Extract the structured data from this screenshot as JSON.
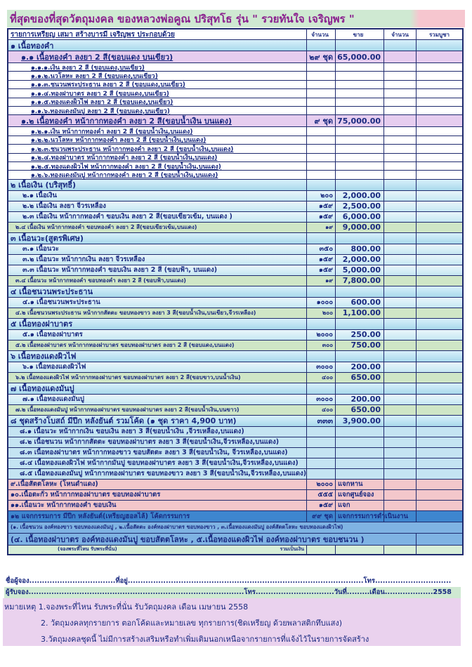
{
  "title": "ที่สุดของที่สุดวัตถุมงคล ของหลวงพ่อคูณ ปริสุทโธ รุ่น \" รวยทันใจ เจริญพร \"",
  "header": {
    "description": "รายการเหรียญ เสมา สร้างบารมี เจริญพร ประกอบด้วย",
    "qty": "จำนวน",
    "price": "ขาย",
    "count": "จำนวน",
    "total": "รวมบูชา"
  },
  "rows": [
    {
      "style": "sec",
      "label": "๑ เนื้อทองคำ",
      "qty": "",
      "price": ""
    },
    {
      "style": "main",
      "label": "๑.๑ เนื้อทองคำ ลงยา 2 สี(ขอบแดง บนเขียว)",
      "qty": "๒๙ ชุด",
      "price": "65,000.00"
    },
    {
      "style": "sub",
      "label": "๑.๑.๑.เงิน ลงยา 2 สี (ขอบแดง,บนเขียว)",
      "qty": "",
      "price": ""
    },
    {
      "style": "sub",
      "label": "๑.๑.๒.นวโลหะ ลงยา 2 สี (ขอบแดง,บนเขียว)",
      "qty": "",
      "price": ""
    },
    {
      "style": "sub",
      "label": "๑.๑.๓.ชนวนพระประธาน ลงยา 2 สี (ขอบแดง,บนเขียว)",
      "qty": "",
      "price": ""
    },
    {
      "style": "sub",
      "label": "๑.๑.๔.ทองฝาบาตร ลงยา 2 สี (ขอบแดง,บนเขียว)",
      "qty": "",
      "price": ""
    },
    {
      "style": "sub",
      "label": "๑.๑.๕.ทองแดงผิวไฟ ลงยา 2 สี (ขอบแดง,บนเขียว)",
      "qty": "",
      "price": ""
    },
    {
      "style": "sub",
      "label": "๑.๑.๖.ทองแดงมันปู ลงยา 2 สี (ขอบแดง,บนเขียว)",
      "qty": "",
      "price": ""
    },
    {
      "style": "main",
      "label": "๑.๒ เนื้อทองคำ หน้ากากทองคำ ลงยา 2 สี(ขอบน้ำเงิน บนแดง)",
      "qty": "๙ ชุด",
      "price": "75,000.00"
    },
    {
      "style": "sub",
      "label": "๑.๒.๑.เงิน หน้ากากทองคำ ลงยา 2 สี (ขอบน้ำเงิน,บนแดง)",
      "qty": "",
      "price": ""
    },
    {
      "style": "sub",
      "label": "๑.๒.๒.นวโลหะ หน้ากากทองคำ ลงยา 2 สี (ขอบน้ำเงิน,บนแดง)",
      "qty": "",
      "price": ""
    },
    {
      "style": "sub",
      "label": "๑.๒.๓.ชนวนพระประธาน หน้ากากทองคำ ลงยา 2 สี (ขอบน้ำเงิน,บนแดง)",
      "qty": "",
      "price": ""
    },
    {
      "style": "sub",
      "label": "๑.๒.๔.ทองฝาบาตร หน้ากากทองคำ ลงยา 2 สี (ขอบน้ำเงิน,บนแดง)",
      "qty": "",
      "price": ""
    },
    {
      "style": "sub",
      "label": "๑.๒.๕.ทองแดงผิวไฟ หน้ากากทองคำ ลงยา 2 สี (ขอบน้ำเงิน,บนแดง)",
      "qty": "",
      "price": ""
    },
    {
      "style": "sub",
      "label": "๑.๒.๖.ทองแดงมันปู หน้ากากทองคำ ลงยา 2 สี (ขอบน้ำเงิน,บนแดง)",
      "qty": "",
      "price": ""
    },
    {
      "style": "sec",
      "label": "๒ เนื้อเงิน (บริสุทธิ์)",
      "qty": "",
      "price": ""
    },
    {
      "style": "item",
      "label": "๒.๑ เนื้อเงิน",
      "qty": "๒๐๐",
      "price": "2,000.00"
    },
    {
      "style": "item",
      "label": "๒.๒ เนื้อเงิน ลงยา จีวรเหลือง",
      "qty": "๑๕๙",
      "price": "2,500.00"
    },
    {
      "style": "item",
      "label": "๒.๓ เนื้อเงิน หน้ากากทองคำ ขอบเงิน ลงยา 2 สี(ขอบเขียวเข้ม, บนแดง )",
      "qty": "๑๕๙",
      "price": "6,000.00"
    },
    {
      "style": "green",
      "label": "๒.๔ เนื้อเงิน หน้ากากทองคำ ขอบทองคำ ลงยา 2 สี(ขอบเขียวเข้ม,บนแดง)",
      "qty": "๑๙",
      "price": "9,000.00"
    },
    {
      "style": "sec",
      "label": "๓ เนื้อนวะ(สูตรพิเศษ)",
      "qty": "",
      "price": ""
    },
    {
      "style": "item",
      "label": "๓.๑ เนื้อนวะ",
      "qty": "๓๕๐",
      "price": "800.00"
    },
    {
      "style": "item",
      "label": "๓.๒ เนื้อนวะ หน้ากากเงิน ลงยา จีวรเหลือง",
      "qty": "๑๕๙",
      "price": "2,000.00"
    },
    {
      "style": "item",
      "label": "๓.๓ เนื้อนวะ หน้ากากทองคำ ขอบเงิน ลงยา 2 สี (ขอบฟ้า, บนแดง)",
      "qty": "๑๕๙",
      "price": "5,000.00"
    },
    {
      "style": "green",
      "label": "๓.๔ เนื้อนวะ หน้ากากทองคำ ขอบทองคำ ลงยา 2 สี (ขอบฟ้า,บนแดง)",
      "qty": "๑๙",
      "price": "7,800.00"
    },
    {
      "style": "sec",
      "label": "๔ เนื้อชนวนพระประธาน",
      "qty": "",
      "price": ""
    },
    {
      "style": "item",
      "label": "๔.๑ เนื้อชนวนพระประธาน",
      "qty": "๑๐๐๐",
      "price": "600.00"
    },
    {
      "style": "green",
      "label": "๔.๒ เนื้อชนวนพระประธาน หน้ากากสัตตะ ขอบทองขาว ลงยา 3 สี(ขอบน้ำเงิน,บนเขียว,จีวรเหลือง)",
      "qty": "๒๐๐",
      "price": "1,100.00"
    },
    {
      "style": "sec",
      "label": "๕ เนื้อทองฝาบาตร",
      "qty": "",
      "price": ""
    },
    {
      "style": "item",
      "label": "๕.๑ เนื้อทองฝาบาตร",
      "qty": "๒๐๐๐",
      "price": "250.00"
    },
    {
      "style": "green",
      "label": "๕.๒ เนื้อทองฝาบาตร หน้ากากทองฝาบาตร ขอบทองฝาบาตร ลงยา 2 สี (ขอบแดง,บนแดง)",
      "qty": "๓๐๐",
      "price": "750.00"
    },
    {
      "style": "sec",
      "label": "๖ เนื้อทองแดงผิวไฟ",
      "qty": "",
      "price": ""
    },
    {
      "style": "item",
      "label": "๖.๑ เนื้อทองแดงผิวไฟ",
      "qty": "๓๐๐๐",
      "price": "200.00"
    },
    {
      "style": "green",
      "label": "๖.๒ เนื้อทองแดงผิวไฟ หน้ากากทองฝาบาตร ขอบทองฝาบาตร ลงยา 2 สี(ขอบขาว,บนน้ำเงิน)",
      "qty": "๔๐๐",
      "price": "650.00"
    },
    {
      "style": "sec",
      "label": "๗ เนื้อทองแดงมันปู",
      "qty": "",
      "price": ""
    },
    {
      "style": "item",
      "label": "๗.๑ เนื้อทองแดงมันปู",
      "qty": "๓๐๐๐",
      "price": "200.00"
    },
    {
      "style": "green",
      "label": "๗.๒ เนื้อทองแดงมันปู หน้ากากทองฝาบาตร ขอบทองฝาบาตร ลงยา 2 สี(ขอบน้ำเงิน,บนขาว)",
      "qty": "๔๐๐",
      "price": "650.00"
    },
    {
      "style": "sec",
      "label": "๘ ชุดสร้างโบสถ์ มีปีก หลังยันต์ รวมโค้ด (๑ ชุด ราคา 4,900 บาท)",
      "qty": "๓๓๓",
      "price": "3,900.00"
    },
    {
      "style": "blue",
      "label": "๘.๑ เนื้อนวะ หน้ากากเงิน ขอบเงิน ลงยา 3 สี(ขอบน้ำเงิน ,จีวรเหลือง,บนแดง)",
      "qty": "",
      "price": ""
    },
    {
      "style": "blue",
      "label": "๘.๒ เนื้อชนวน หน้ากากสัตตะ ขอบทองฝาบาตร ลงยา 3 สี(ขอบน้ำเงิน,จีวรเหลือง,บนแดง)",
      "qty": "",
      "price": ""
    },
    {
      "style": "blue",
      "label": "๘.๓ เนื้อทองฝาบาตร หน้ากากทองขาว ขอบสัตตะ ลงยา 3 สี(ขอบน้ำเงิน, จีวรเหลือง,บนแดง)",
      "qty": "",
      "price": ""
    },
    {
      "style": "blue",
      "label": "๘.๔ เนื้อทองแดงผิวไฟ หน้ากากมันปู ขอบทองฝาบาตร ลงยา 3 สี(ขอบน้ำเงิน,จีวรเหลือง,บนแดง)",
      "qty": "",
      "price": ""
    },
    {
      "style": "blue",
      "label": "๘.๕ เนื้อทองแดงมันปู หน้ากากทองฝาบาตร ขอบทองขาว ลงยา 3 สี(ขอบน้ำเงิน,จีวรเหลือง,บนแดง)",
      "qty": "",
      "price": ""
    },
    {
      "style": "pink",
      "label": "๙.เนื้อสัตตโลหะ (โหนดำแดง)",
      "qty": "๒๐๐๐",
      "price": "แจกหาน"
    },
    {
      "style": "pink",
      "label": "๑๐.เนื้อตะกั่ว หน้ากากทองฝาบาตร ขอบทองฝาบาตร",
      "qty": "๕๕๕",
      "price": "แจกศูนย์จอง"
    },
    {
      "style": "pink",
      "label": "๑๑.เนื้อนวะ หน้ากากทองคำ ขอบเงิน",
      "qty": "๑๕๙",
      "price": "แจก"
    },
    {
      "style": "dark",
      "label": "๑๒ แจกกรรมการ มีปีก หลังยันต์(เหรียญฮอลไล้) โค้ดกรรมการ",
      "qty": "๙๙ ชุด",
      "price": "แจกกรรมการดำเนินงาน"
    }
  ],
  "notes_rows": [
    "(๑. เนื้อชนวน องค์ทองขาว ขอบทองแดงมันปู , ๒.เนื้อสัตตะ องค์ทองฝาบาตร ขอบทองขาว , ๓.เนื้อทองแดงมันปู องค์สัตตโลหะ ขอบทองแดงผิวไฟ)",
    "(๔. เนื้อทองฝาบาตร องค์ทองแดงมันปู ขอบสัตตโลหะ , ๕.เนื้อทองแดงผิวไฟ องค์ทองฝาบาตร ขอบชนวน )"
  ],
  "footer": {
    "note": "(จองพระที่ไหน รับพระที่นั่น)",
    "total_label": "รวมเป็นเงิน"
  },
  "form": {
    "booker_line": "ชื่อผู้จอง..................................ที่อยู่.............................................................................................โทร..............................",
    "receiver_line": "ผู้รับจอง.....................................................................................โทร...............................วันที่.........เดือน...................2558"
  },
  "remarks": [
    "หมายเหตุ 1.จองพระที่ไหน รับพระที่นั่น รับวัตถุมงคล เดือน เมษายน 2558",
    "2. วัตถุมงคลทุกรายการ ตอกโค้ดและหมายเลข ทุกรายการ(ชิดเหรียญ ด้วยพลาสติกทึบแสง)",
    "3.วัตถุมงคลชุดนี้ ไม่มีการสร้างเสริมหรือทำเพิ่มเติมนอกเหนือจากรายการที่แจ้งไว้ในรายการจัดสร้าง"
  ],
  "colors": {
    "text": "#1a2a80",
    "title": "#8a1f8e",
    "section": "#a9d9ec",
    "highlight": "#cfe6c6",
    "pink": "#f3c7cb",
    "dark_blue": "#3e86cf"
  }
}
